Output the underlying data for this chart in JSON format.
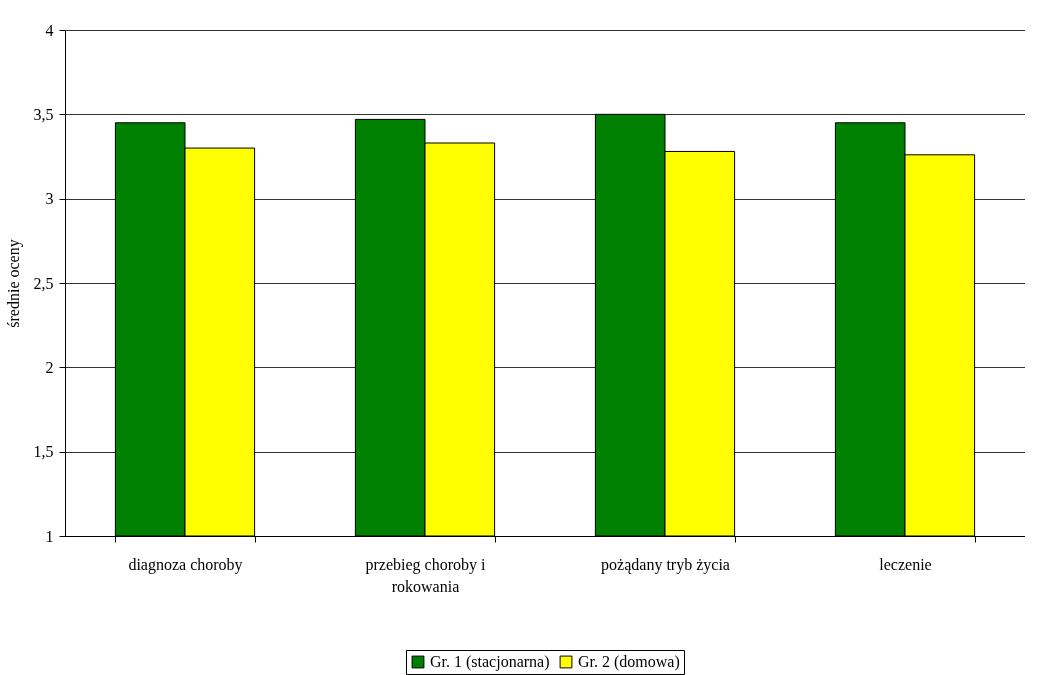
{
  "chart_data": {
    "type": "bar",
    "ylabel": "średnie oceny",
    "categories": [
      "diagnoza choroby",
      "przebieg choroby i rokowania",
      "pożądany tryb życia",
      "leczenie"
    ],
    "series": [
      {
        "name": "Gr. 1 (stacjonarna)",
        "color": "#008000",
        "values": [
          3.45,
          3.47,
          3.5,
          3.45
        ]
      },
      {
        "name": "Gr. 2 (domowa)",
        "color": "#ffff00",
        "values": [
          3.3,
          3.33,
          3.28,
          3.26
        ]
      }
    ],
    "ylim": [
      1,
      4
    ],
    "yticks": [
      1,
      {
        "value": 1.5,
        "label": "1,5"
      },
      2,
      {
        "value": 2.5,
        "label": "2,5"
      },
      3,
      {
        "value": 3.5,
        "label": "3,5"
      },
      4
    ],
    "grid": "y",
    "legend": "bottom"
  }
}
